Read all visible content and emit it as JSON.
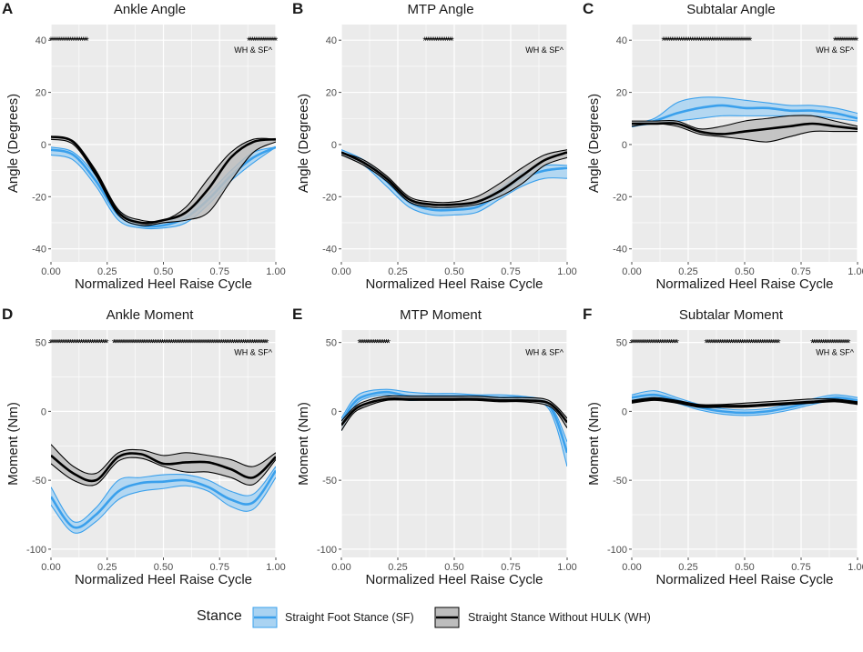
{
  "colors": {
    "panel_bg": "#EBEBEB",
    "grid": "#FFFFFF",
    "sf": "#3AA0EC",
    "sf_fill": "#A9D3F2",
    "wh": "#000000",
    "wh_fill": "#BDBDBD",
    "text": "#1A1A1A",
    "tick": "#4D4D4D"
  },
  "legend": {
    "title": "Stance",
    "sf_label": "Straight Foot Stance (SF)",
    "wh_label": "Straight Stance Without HULK (WH)"
  },
  "chart_data": [
    {
      "id": "A",
      "letter": "A",
      "title": "Ankle Angle",
      "type": "line",
      "xlabel": "Normalized Heel Raise Cycle",
      "ylabel": "Angle (Degrees)",
      "xlim": [
        0,
        1
      ],
      "ylim": [
        -45,
        46
      ],
      "xticks": [
        0,
        0.25,
        0.5,
        0.75,
        1
      ],
      "xtick_labels": [
        "0.00",
        "0.25",
        "0.50",
        "0.75",
        "1.00"
      ],
      "yticks": [
        -40,
        -20,
        0,
        20,
        40
      ],
      "ytick_labels": [
        "-40",
        "-20",
        "0",
        "20",
        "40"
      ],
      "sig_y": 40,
      "sig_ranges": [
        [
          0,
          0.16
        ],
        [
          0.88,
          1.0
        ]
      ],
      "annotation": "WH & SF^",
      "x": [
        0,
        0.1,
        0.2,
        0.3,
        0.4,
        0.5,
        0.6,
        0.7,
        0.8,
        0.9,
        1.0
      ],
      "series": [
        {
          "name": "Straight Foot Stance (SF)",
          "key": "sf",
          "mean": [
            -2,
            -4,
            -14,
            -27,
            -31,
            -31,
            -28,
            -21,
            -12,
            -5,
            -1
          ],
          "upper": [
            -1,
            -3,
            -12,
            -25,
            -30,
            -30,
            -26,
            -19,
            -10,
            -3,
            -1
          ],
          "lower": [
            -4,
            -6,
            -16,
            -29,
            -32,
            -32,
            -30,
            -23,
            -14,
            -7,
            -1
          ]
        },
        {
          "name": "Straight Stance Without HULK (WH)",
          "key": "wh",
          "mean": [
            3,
            1,
            -11,
            -26,
            -30,
            -29,
            -26,
            -17,
            -5,
            1,
            2
          ],
          "upper": [
            3,
            1,
            -10,
            -25,
            -29,
            -29,
            -24,
            -13,
            -3,
            2,
            2
          ],
          "lower": [
            2,
            0,
            -12,
            -27,
            -31,
            -30,
            -29,
            -26,
            -14,
            -3,
            1
          ]
        }
      ]
    },
    {
      "id": "B",
      "letter": "B",
      "title": "MTP Angle",
      "type": "line",
      "xlabel": "Normalized Heel Raise Cycle",
      "ylabel": "Angle (Degrees)",
      "xlim": [
        0,
        1
      ],
      "ylim": [
        -45,
        46
      ],
      "xticks": [
        0,
        0.25,
        0.5,
        0.75,
        1
      ],
      "xtick_labels": [
        "0.00",
        "0.25",
        "0.50",
        "0.75",
        "1.00"
      ],
      "yticks": [
        -40,
        -20,
        0,
        20,
        40
      ],
      "ytick_labels": [
        "-40",
        "-20",
        "0",
        "20",
        "40"
      ],
      "sig_y": 40,
      "sig_ranges": [
        [
          0.37,
          0.49
        ]
      ],
      "annotation": "WH & SF^",
      "x": [
        0,
        0.1,
        0.2,
        0.3,
        0.4,
        0.5,
        0.6,
        0.7,
        0.8,
        0.9,
        1.0
      ],
      "series": [
        {
          "name": "Straight Foot Stance (SF)",
          "key": "sf",
          "mean": [
            -3,
            -7,
            -14,
            -22,
            -25,
            -25,
            -24,
            -19,
            -13,
            -10,
            -9
          ],
          "upper": [
            -2,
            -6,
            -13,
            -21,
            -24,
            -24,
            -22,
            -17,
            -11,
            -8,
            -8
          ],
          "lower": [
            -4,
            -8,
            -16,
            -24,
            -27,
            -27,
            -26,
            -21,
            -16,
            -13,
            -13
          ]
        },
        {
          "name": "Straight Stance Without HULK (WH)",
          "key": "wh",
          "mean": [
            -3,
            -7,
            -13,
            -21,
            -23,
            -23,
            -22,
            -18,
            -12,
            -6,
            -3
          ],
          "upper": [
            -3,
            -6,
            -12,
            -20,
            -22,
            -22,
            -20,
            -15,
            -9,
            -4,
            -2
          ],
          "lower": [
            -4,
            -8,
            -14,
            -22,
            -24,
            -24,
            -23,
            -20,
            -15,
            -8,
            -5
          ]
        }
      ]
    },
    {
      "id": "C",
      "letter": "C",
      "title": "Subtalar Angle",
      "type": "line",
      "xlabel": "Normalized Heel Raise Cycle",
      "ylabel": "Angle (Degrees)",
      "xlim": [
        0,
        1
      ],
      "ylim": [
        -45,
        46
      ],
      "xticks": [
        0,
        0.25,
        0.5,
        0.75,
        1
      ],
      "xtick_labels": [
        "0.00",
        "0.25",
        "0.50",
        "0.75",
        "1.00"
      ],
      "yticks": [
        -40,
        -20,
        0,
        20,
        40
      ],
      "ytick_labels": [
        "-40",
        "-20",
        "0",
        "20",
        "40"
      ],
      "sig_y": 40,
      "sig_ranges": [
        [
          0.14,
          0.53
        ],
        [
          0.9,
          1.0
        ]
      ],
      "annotation": "WH & SF^",
      "x": [
        0,
        0.1,
        0.2,
        0.3,
        0.4,
        0.5,
        0.6,
        0.7,
        0.8,
        0.9,
        1.0
      ],
      "series": [
        {
          "name": "Straight Foot Stance (SF)",
          "key": "sf",
          "mean": [
            7,
            9,
            12,
            14,
            15,
            14,
            14,
            13,
            13,
            12,
            10
          ],
          "upper": [
            8,
            10,
            16,
            18,
            18,
            17,
            16,
            15,
            15,
            14,
            12
          ],
          "lower": [
            7,
            8,
            9,
            10,
            11,
            11,
            11,
            11,
            11,
            10,
            9
          ]
        },
        {
          "name": "Straight Stance Without HULK (WH)",
          "key": "wh",
          "mean": [
            8,
            8,
            8,
            5,
            4,
            5,
            6,
            7,
            8,
            7,
            6
          ],
          "upper": [
            9,
            9,
            9,
            6,
            7,
            9,
            10,
            11,
            11,
            9,
            7
          ],
          "lower": [
            7,
            8,
            7,
            4,
            3,
            2,
            1,
            3,
            5,
            5,
            5
          ]
        }
      ]
    },
    {
      "id": "D",
      "letter": "D",
      "title": "Ankle Moment",
      "type": "line",
      "xlabel": "Normalized Heel Raise Cycle",
      "ylabel": "Moment (Nm)",
      "xlim": [
        0,
        1
      ],
      "ylim": [
        -106,
        59
      ],
      "xticks": [
        0,
        0.25,
        0.5,
        0.75,
        1
      ],
      "xtick_labels": [
        "0.00",
        "0.25",
        "0.50",
        "0.75",
        "1.00"
      ],
      "yticks": [
        -100,
        -50,
        0,
        50
      ],
      "ytick_labels": [
        "-100",
        "-50",
        "0",
        "50"
      ],
      "sig_y": 50,
      "sig_ranges": [
        [
          0,
          0.25
        ],
        [
          0.28,
          0.96
        ]
      ],
      "annotation": "WH & SF^",
      "x": [
        0,
        0.1,
        0.2,
        0.3,
        0.4,
        0.5,
        0.6,
        0.7,
        0.8,
        0.9,
        1.0
      ],
      "series": [
        {
          "name": "Straight Foot Stance (SF)",
          "key": "sf",
          "mean": [
            -62,
            -84,
            -75,
            -58,
            -52,
            -51,
            -50,
            -55,
            -64,
            -66,
            -43
          ],
          "upper": [
            -55,
            -80,
            -70,
            -50,
            -48,
            -46,
            -46,
            -50,
            -58,
            -60,
            -40
          ],
          "lower": [
            -68,
            -88,
            -80,
            -64,
            -58,
            -56,
            -54,
            -58,
            -69,
            -71,
            -48
          ]
        },
        {
          "name": "Straight Stance Without HULK (WH)",
          "key": "wh",
          "mean": [
            -32,
            -45,
            -50,
            -33,
            -31,
            -38,
            -37,
            -37,
            -42,
            -48,
            -33
          ],
          "upper": [
            -24,
            -40,
            -45,
            -30,
            -28,
            -32,
            -30,
            -32,
            -35,
            -40,
            -30
          ],
          "lower": [
            -38,
            -50,
            -53,
            -36,
            -34,
            -40,
            -44,
            -44,
            -48,
            -53,
            -35
          ]
        }
      ]
    },
    {
      "id": "E",
      "letter": "E",
      "title": "MTP Moment",
      "type": "line",
      "xlabel": "Normalized Heel Raise Cycle",
      "ylabel": "Moment (Nm)",
      "xlim": [
        0,
        1
      ],
      "ylim": [
        -106,
        59
      ],
      "xticks": [
        0,
        0.25,
        0.5,
        0.75,
        1
      ],
      "xtick_labels": [
        "0.00",
        "0.25",
        "0.50",
        "0.75",
        "1.00"
      ],
      "yticks": [
        -100,
        -50,
        0,
        50
      ],
      "ytick_labels": [
        "-100",
        "-50",
        "0",
        "50"
      ],
      "sig_y": 50,
      "sig_ranges": [
        [
          0.08,
          0.21
        ]
      ],
      "annotation": "WH & SF^",
      "x": [
        0,
        0.05,
        0.1,
        0.2,
        0.3,
        0.4,
        0.5,
        0.6,
        0.7,
        0.8,
        0.9,
        0.95,
        1.0
      ],
      "series": [
        {
          "name": "Straight Foot Stance (SF)",
          "key": "sf",
          "mean": [
            -8,
            5,
            11,
            14,
            11,
            11,
            11,
            11,
            10,
            10,
            7,
            -5,
            -30
          ],
          "upper": [
            -5,
            8,
            14,
            16,
            14,
            13,
            13,
            12,
            12,
            11,
            8,
            -2,
            -22
          ],
          "lower": [
            -14,
            2,
            9,
            12,
            8,
            9,
            9,
            9,
            9,
            9,
            5,
            -10,
            -40
          ]
        },
        {
          "name": "Straight Stance Without HULK (WH)",
          "key": "wh",
          "mean": [
            -10,
            0,
            5,
            9,
            9,
            9,
            9,
            9,
            8,
            8,
            7,
            2,
            -8
          ],
          "upper": [
            -7,
            2,
            7,
            11,
            11,
            11,
            11,
            11,
            10,
            10,
            9,
            4,
            -5
          ],
          "lower": [
            -14,
            -2,
            3,
            8,
            8,
            8,
            8,
            8,
            7,
            7,
            5,
            0,
            -12
          ]
        }
      ]
    },
    {
      "id": "F",
      "letter": "F",
      "title": "Subtalar Moment",
      "type": "line",
      "xlabel": "Normalized Heel Raise Cycle",
      "ylabel": "Moment (Nm)",
      "xlim": [
        0,
        1
      ],
      "ylim": [
        -106,
        59
      ],
      "xticks": [
        0,
        0.25,
        0.5,
        0.75,
        1
      ],
      "xtick_labels": [
        "0.00",
        "0.25",
        "0.50",
        "0.75",
        "1.00"
      ],
      "yticks": [
        -100,
        -50,
        0,
        50
      ],
      "ytick_labels": [
        "-100",
        "-50",
        "0",
        "50"
      ],
      "sig_y": 50,
      "sig_ranges": [
        [
          0,
          0.2
        ],
        [
          0.33,
          0.65
        ],
        [
          0.8,
          0.96
        ]
      ],
      "annotation": "WH & SF^",
      "x": [
        0,
        0.1,
        0.2,
        0.3,
        0.4,
        0.5,
        0.6,
        0.7,
        0.8,
        0.9,
        1.0
      ],
      "series": [
        {
          "name": "Straight Foot Stance (SF)",
          "key": "sf",
          "mean": [
            10,
            12,
            8,
            3,
            0,
            -1,
            0,
            3,
            7,
            10,
            8
          ],
          "upper": [
            12,
            15,
            10,
            5,
            2,
            1,
            2,
            5,
            9,
            12,
            10
          ],
          "lower": [
            8,
            10,
            6,
            1,
            -2,
            -3,
            -2,
            1,
            5,
            8,
            6
          ]
        },
        {
          "name": "Straight Stance Without HULK (WH)",
          "key": "wh",
          "mean": [
            7,
            9,
            7,
            4,
            4,
            4,
            5,
            6,
            7,
            8,
            6
          ],
          "upper": [
            8,
            10,
            8,
            5,
            5,
            6,
            7,
            8,
            9,
            9,
            7
          ],
          "lower": [
            6,
            8,
            6,
            3,
            3,
            3,
            4,
            5,
            6,
            7,
            5
          ]
        }
      ]
    }
  ]
}
